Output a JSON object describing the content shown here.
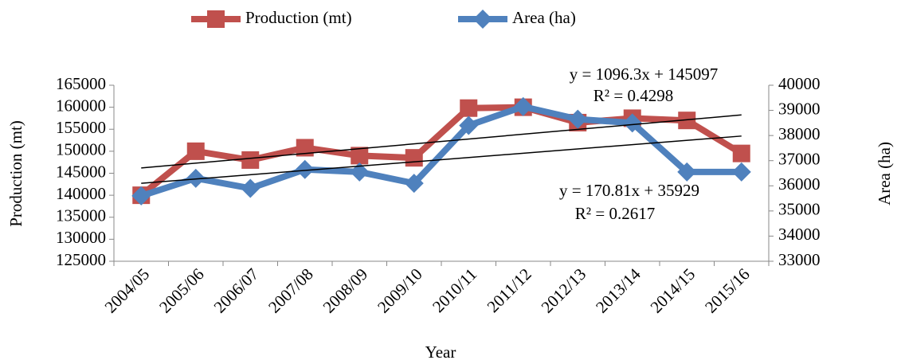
{
  "chart_data": {
    "type": "line",
    "x_label": "Year",
    "y_label": "Production (mt)",
    "y2_label": "Area (ha)",
    "categories": [
      "2004/05",
      "2005/06",
      "2006/07",
      "2007/08",
      "2008/09",
      "2009/10",
      "2010/11",
      "2011/12",
      "2012/13",
      "2013/14",
      "2014/15",
      "2015/16"
    ],
    "series": [
      {
        "name": "Production (mt)",
        "color": "#c0504d",
        "marker": "square",
        "axis": "y",
        "values": [
          140000,
          150000,
          148000,
          150800,
          149000,
          148500,
          159800,
          160000,
          156500,
          157500,
          157000,
          149500
        ]
      },
      {
        "name": "Area (ha)",
        "color": "#4f81bd",
        "marker": "diamond",
        "axis": "y2",
        "values": [
          35600,
          36300,
          35900,
          36650,
          36550,
          36100,
          38400,
          39150,
          38650,
          38500,
          36550,
          36550
        ]
      }
    ],
    "trendlines": [
      {
        "axis": "y",
        "slope": 1096.3,
        "intercept": 145097,
        "equation": "y = 1096.3x + 145097",
        "r2": "R² = 0.4298"
      },
      {
        "axis": "y2",
        "slope": 170.81,
        "intercept": 35929,
        "equation": "y = 170.81x + 35929",
        "r2": "R² = 0.2617"
      }
    ],
    "ylim": [
      125000,
      165000
    ],
    "yticks": [
      125000,
      130000,
      135000,
      140000,
      145000,
      150000,
      155000,
      160000,
      165000
    ],
    "y2lim": [
      33000,
      40000
    ],
    "y2ticks": [
      33000,
      34000,
      35000,
      36000,
      37000,
      38000,
      39000,
      40000
    ],
    "legend": "top"
  }
}
